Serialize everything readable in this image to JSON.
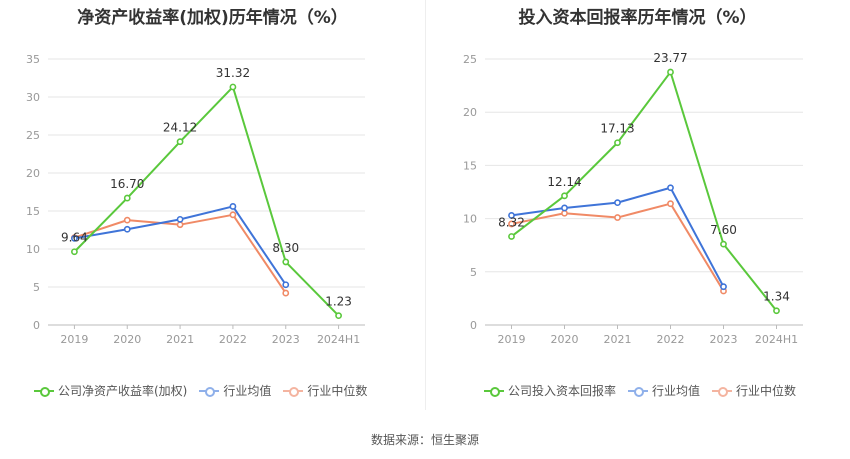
{
  "source_text": "数据来源：恒生聚源",
  "colors": {
    "company": "#5ac83c",
    "avg": "#3f74d8",
    "median": "#f08a66",
    "grid": "#e6e6e6",
    "axis": "#999999",
    "label": "#333333"
  },
  "chart_data": [
    {
      "type": "line",
      "title": "净资产收益率(加权)历年情况（%）",
      "categories": [
        "2019",
        "2020",
        "2021",
        "2022",
        "2023",
        "2024H1"
      ],
      "ylim": [
        0,
        35
      ],
      "yticks": [
        0,
        5,
        10,
        15,
        20,
        25,
        30,
        35
      ],
      "grid": true,
      "legend_position": "bottom",
      "series": [
        {
          "name": "公司净资产收益率(加权)",
          "key": "company",
          "values": [
            9.64,
            16.7,
            24.12,
            31.32,
            8.3,
            1.23
          ],
          "labels": [
            "9.64",
            "16.70",
            "24.12",
            "31.32",
            "8.30",
            "1.23"
          ]
        },
        {
          "name": "行业均值",
          "key": "avg",
          "values": [
            11.4,
            12.6,
            13.9,
            15.6,
            5.3,
            null
          ]
        },
        {
          "name": "行业中位数",
          "key": "median",
          "values": [
            11.5,
            13.8,
            13.2,
            14.5,
            4.2,
            null
          ]
        }
      ]
    },
    {
      "type": "line",
      "title": "投入资本回报率历年情况（%）",
      "categories": [
        "2019",
        "2020",
        "2021",
        "2022",
        "2023",
        "2024H1"
      ],
      "ylim": [
        0,
        25
      ],
      "yticks": [
        0,
        5,
        10,
        15,
        20,
        25
      ],
      "grid": true,
      "legend_position": "bottom",
      "series": [
        {
          "name": "公司投入资本回报率",
          "key": "company",
          "values": [
            8.32,
            12.14,
            17.13,
            23.77,
            7.6,
            1.34
          ],
          "labels": [
            "8.32",
            "12.14",
            "17.13",
            "23.77",
            "7.60",
            "1.34"
          ]
        },
        {
          "name": "行业均值",
          "key": "avg",
          "values": [
            10.3,
            11.0,
            11.5,
            12.9,
            3.6,
            null
          ]
        },
        {
          "name": "行业中位数",
          "key": "median",
          "values": [
            9.5,
            10.5,
            10.1,
            11.4,
            3.2,
            null
          ]
        }
      ]
    }
  ]
}
